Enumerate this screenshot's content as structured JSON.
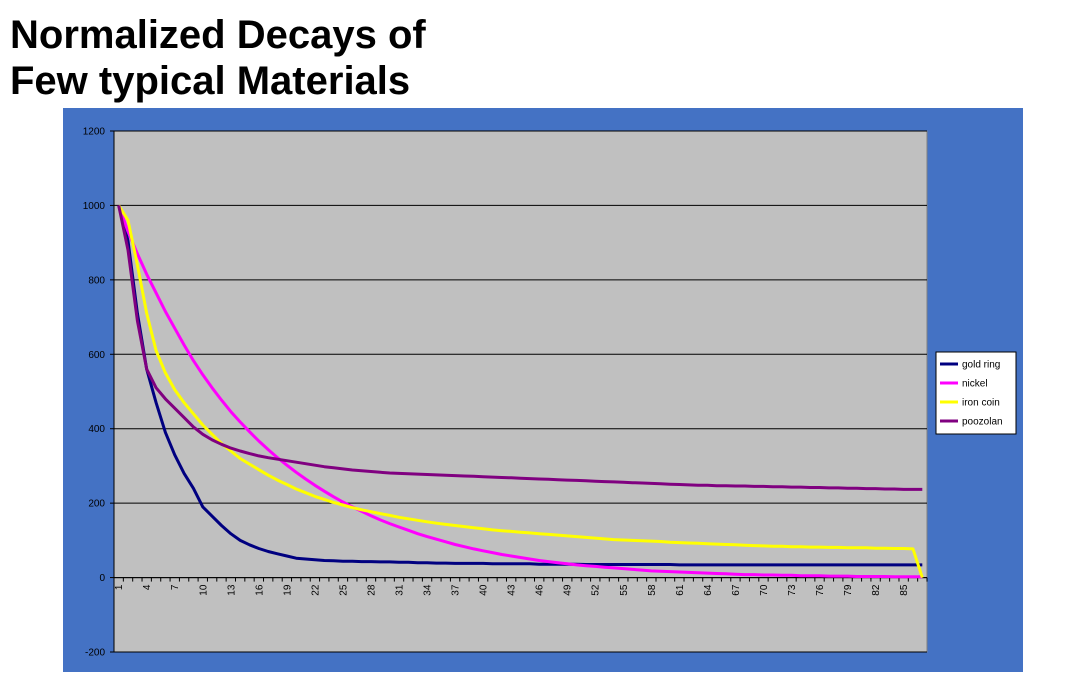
{
  "slide": {
    "title_line1": "Normalized Decays of",
    "title_line2": "Few typical Materials"
  },
  "colors": {
    "background_panel": "#4472c4",
    "plot_area": "#c0c0c0",
    "gridline": "#000000"
  },
  "chart_data": {
    "type": "line",
    "title": "",
    "xlabel": "",
    "ylabel": "",
    "ylim": [
      -200,
      1200
    ],
    "yticks": [
      -200,
      0,
      200,
      400,
      600,
      800,
      1000,
      1200
    ],
    "x_categories_count": 87,
    "xticks_labeled": [
      1,
      4,
      7,
      10,
      13,
      16,
      19,
      22,
      25,
      28,
      31,
      34,
      37,
      40,
      43,
      46,
      49,
      52,
      55,
      58,
      61,
      64,
      67,
      70,
      73,
      76,
      79,
      82,
      85
    ],
    "grid": "horizontal major gridlines",
    "legend_position": "right",
    "series": [
      {
        "name": "gold ring",
        "color": "#000080",
        "values": [
          1000,
          905,
          710,
          560,
          470,
          390,
          330,
          280,
          240,
          190,
          165,
          140,
          118,
          100,
          88,
          78,
          70,
          64,
          58,
          52,
          50,
          48,
          46,
          45,
          44,
          44,
          43,
          43,
          42,
          42,
          41,
          41,
          40,
          40,
          39,
          39,
          38,
          38,
          38,
          38,
          37,
          37,
          37,
          37,
          37,
          36,
          36,
          36,
          36,
          36,
          35,
          35,
          35,
          35,
          35,
          35,
          35,
          35,
          35,
          35,
          34,
          34,
          34,
          34,
          34,
          34,
          34,
          34,
          34,
          34,
          34,
          34,
          34,
          34,
          34,
          34,
          34,
          34,
          34,
          34,
          34,
          34,
          34,
          34,
          34,
          34,
          34
        ]
      },
      {
        "name": "nickel",
        "color": "#ff00ff",
        "values": [
          1000,
          930,
          870,
          815,
          765,
          715,
          670,
          625,
          583,
          545,
          510,
          477,
          446,
          418,
          392,
          367,
          344,
          322,
          302,
          283,
          265,
          248,
          232,
          217,
          203,
          190,
          178,
          166,
          155,
          145,
          136,
          127,
          118,
          110,
          103,
          96,
          89,
          83,
          77,
          72,
          67,
          62,
          58,
          54,
          50,
          46,
          43,
          40,
          37,
          34,
          32,
          30,
          28,
          26,
          24,
          22,
          20,
          18,
          17,
          16,
          15,
          14,
          13,
          12,
          11,
          10,
          9,
          8,
          8,
          7,
          7,
          6,
          6,
          5,
          5,
          5,
          4,
          4,
          4,
          3,
          3,
          3,
          3,
          2,
          2,
          2,
          2
        ]
      },
      {
        "name": "iron coin",
        "color": "#ffff00",
        "values": [
          1000,
          960,
          840,
          710,
          610,
          550,
          505,
          470,
          440,
          410,
          385,
          360,
          340,
          320,
          305,
          290,
          275,
          262,
          250,
          238,
          228,
          218,
          210,
          202,
          195,
          188,
          182,
          177,
          172,
          167,
          162,
          158,
          154,
          150,
          146,
          143,
          140,
          137,
          134,
          131,
          128,
          126,
          124,
          122,
          120,
          118,
          116,
          114,
          112,
          110,
          108,
          106,
          104,
          102,
          101,
          100,
          99,
          98,
          97,
          95,
          94,
          93,
          92,
          91,
          90,
          89,
          88,
          87,
          86,
          85,
          84,
          84,
          83,
          83,
          82,
          82,
          81,
          81,
          80,
          80,
          80,
          79,
          79,
          78,
          78,
          77,
          0
        ]
      },
      {
        "name": "poozolan",
        "color": "#800080",
        "values": [
          1000,
          880,
          690,
          560,
          510,
          480,
          455,
          430,
          405,
          385,
          370,
          358,
          348,
          340,
          333,
          327,
          322,
          318,
          314,
          310,
          306,
          302,
          298,
          295,
          292,
          289,
          287,
          285,
          283,
          281,
          280,
          279,
          278,
          277,
          276,
          275,
          274,
          273,
          272,
          271,
          270,
          269,
          268,
          267,
          266,
          265,
          264,
          263,
          262,
          261,
          260,
          259,
          258,
          257,
          256,
          255,
          254,
          253,
          252,
          251,
          250,
          249,
          248,
          248,
          247,
          247,
          246,
          246,
          245,
          245,
          244,
          244,
          243,
          243,
          242,
          242,
          241,
          241,
          240,
          240,
          239,
          239,
          238,
          238,
          237,
          237,
          237
        ]
      }
    ]
  }
}
